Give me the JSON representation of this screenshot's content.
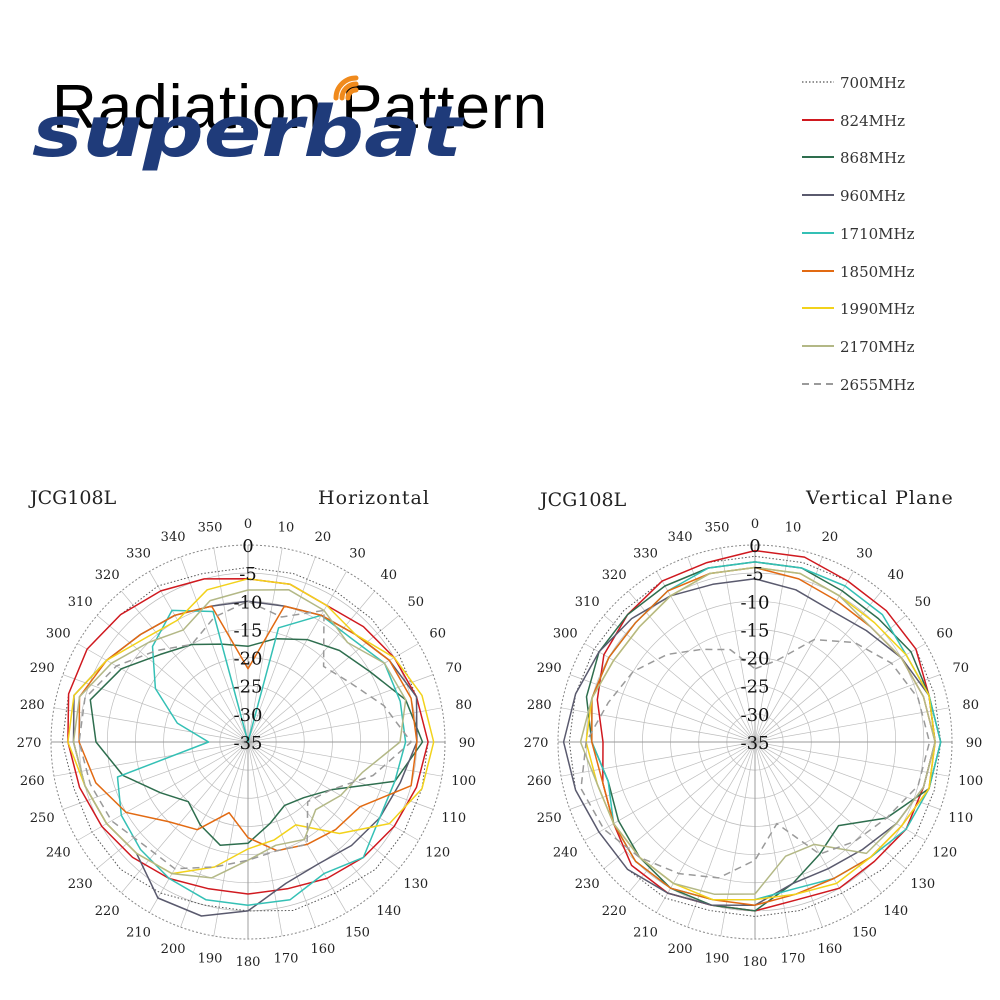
{
  "page": {
    "title": "Radiation Pattern",
    "logo_text": "superbat"
  },
  "colors": {
    "logo_blue": "#1f3b7a",
    "logo_orange": "#f08a1c",
    "grid": "#bdbdbd"
  },
  "legend": [
    {
      "label": "700MHz",
      "color": "#555555",
      "dash": "dotted"
    },
    {
      "label": "824MHz",
      "color": "#d0191f",
      "dash": "solid"
    },
    {
      "label": "868MHz",
      "color": "#2e6e4e",
      "dash": "solid"
    },
    {
      "label": "960MHz",
      "color": "#5a5a6e",
      "dash": "solid"
    },
    {
      "label": "1710MHz",
      "color": "#34c0b5",
      "dash": "solid"
    },
    {
      "label": "1850MHz",
      "color": "#e26a12",
      "dash": "solid"
    },
    {
      "label": "1990MHz",
      "color": "#f2d21b",
      "dash": "solid"
    },
    {
      "label": "2170MHz",
      "color": "#b3b886",
      "dash": "solid"
    },
    {
      "label": "2655MHz",
      "color": "#9a9a9a",
      "dash": "dashed"
    }
  ],
  "chart_data": [
    {
      "type": "polar-line",
      "model": "JCG108L",
      "title": "Horizontal",
      "r_ticks": [
        "0",
        "-5",
        "-10",
        "-15",
        "-20",
        "-25",
        "-30",
        "-35"
      ],
      "r_range": [
        -35,
        0
      ],
      "angle_ticks": [
        "0",
        "10",
        "20",
        "30",
        "40",
        "50",
        "60",
        "70",
        "80",
        "90",
        "100",
        "110",
        "120",
        "130",
        "140",
        "150",
        "160",
        "170",
        "180",
        "190",
        "200",
        "210",
        "220",
        "230",
        "240",
        "250",
        "260",
        "270",
        "280",
        "290",
        "300",
        "310",
        "320",
        "330",
        "340",
        "350"
      ],
      "angles": [
        0,
        15,
        30,
        45,
        60,
        75,
        90,
        105,
        120,
        135,
        150,
        165,
        180,
        195,
        210,
        225,
        240,
        255,
        270,
        285,
        300,
        315,
        330,
        345
      ],
      "series": [
        {
          "name": "700MHz",
          "values": [
            -4,
            -4,
            -4,
            -4,
            -4,
            -4,
            -3,
            -3,
            -3,
            -3,
            -4,
            -4,
            -5,
            -5,
            -4,
            -3,
            -3,
            -3,
            -2,
            -2,
            -2,
            -3,
            -3,
            -4
          ]
        },
        {
          "name": "824MHz",
          "values": [
            -6,
            -6,
            -7,
            -6,
            -5,
            -4,
            -3,
            -4,
            -5,
            -6,
            -7,
            -8,
            -8,
            -8,
            -7,
            -6,
            -5,
            -4,
            -3,
            -2,
            -2,
            -3,
            -4,
            -5
          ]
        },
        {
          "name": "868MHz",
          "values": [
            -18,
            -16,
            -14,
            -12,
            -10,
            -6,
            -4,
            -8,
            -18,
            -21,
            -22,
            -20,
            -17,
            -16,
            -18,
            -20,
            -17,
            -12,
            -8,
            -6,
            -9,
            -13,
            -15,
            -17
          ]
        },
        {
          "name": "960MHz",
          "values": [
            -10,
            -10,
            -9,
            -8,
            -6,
            -4,
            -5,
            -7,
            -8,
            -9,
            -10,
            -9,
            -5,
            -3,
            -3,
            -7,
            -6,
            -5,
            -4,
            -3,
            -6,
            -8,
            -9,
            -10
          ]
        },
        {
          "name": "1710MHz",
          "values": [
            -35,
            -14,
            -9,
            -9,
            -7,
            -7,
            -7,
            -8,
            -8,
            -6,
            -8,
            -6,
            -6,
            -6,
            -7,
            -8,
            -9,
            -11,
            -28,
            -22,
            -16,
            -11,
            -8,
            -11
          ]
        },
        {
          "name": "1850MHz",
          "values": [
            -22,
            -10,
            -9,
            -8,
            -6,
            -5,
            -5,
            -5,
            -12,
            -13,
            -14,
            -15,
            -18,
            -22,
            -17,
            -15,
            -10,
            -7,
            -5,
            -4,
            -6,
            -8,
            -9,
            -10
          ]
        },
        {
          "name": "1990MHz",
          "values": [
            -6,
            -6,
            -7,
            -8,
            -5,
            -3,
            -2,
            -3,
            -6,
            -12,
            -18,
            -17,
            -16,
            -12,
            -8,
            -7,
            -6,
            -5,
            -3,
            -3,
            -6,
            -9,
            -10,
            -7
          ]
        },
        {
          "name": "2170MHz",
          "values": [
            -8,
            -7,
            -8,
            -10,
            -7,
            -6,
            -8,
            -14,
            -16,
            -18,
            -15,
            -16,
            -14,
            -10,
            -8,
            -7,
            -6,
            -5,
            -4,
            -4,
            -7,
            -10,
            -12,
            -9
          ]
        },
        {
          "name": "2655MHz",
          "values": [
            -10,
            -12,
            -8,
            -16,
            -14,
            -10,
            -6,
            -12,
            -18,
            -20,
            -14,
            -15,
            -14,
            -12,
            -9,
            -9,
            -7,
            -6,
            -5,
            -5,
            -8,
            -12,
            -15,
            -12
          ]
        }
      ]
    },
    {
      "type": "polar-line",
      "model": "JCG108L",
      "title": "Vertical Plane",
      "r_ticks": [
        "0",
        "-5",
        "-10",
        "-15",
        "-20",
        "-25",
        "-30",
        "-35"
      ],
      "r_range": [
        -35,
        0
      ],
      "angle_ticks": [
        "0",
        "10",
        "20",
        "30",
        "40",
        "50",
        "60",
        "70",
        "80",
        "90",
        "100",
        "110",
        "120",
        "130",
        "140",
        "150",
        "160",
        "170",
        "180",
        "190",
        "200",
        "210",
        "220",
        "230",
        "240",
        "250",
        "260",
        "270",
        "280",
        "290",
        "300",
        "310",
        "320",
        "330",
        "340",
        "350"
      ],
      "angles": [
        0,
        15,
        30,
        45,
        60,
        75,
        90,
        105,
        120,
        135,
        150,
        165,
        180,
        195,
        210,
        225,
        240,
        255,
        270,
        285,
        300,
        315,
        330,
        345
      ],
      "series": [
        {
          "name": "700MHz",
          "values": [
            -2,
            -2,
            -2,
            -2,
            -2,
            -2,
            -2,
            -2,
            -2,
            -3,
            -4,
            -4,
            -4,
            -4,
            -3,
            -3,
            -3,
            -2,
            -2,
            -2,
            -2,
            -2,
            -2,
            -2
          ]
        },
        {
          "name": "824MHz",
          "values": [
            -1,
            -1,
            -2,
            -2,
            -2,
            -3,
            -3,
            -4,
            -4,
            -5,
            -5,
            -6,
            -5,
            -5,
            -4,
            -4,
            -6,
            -7,
            -8,
            -6,
            -4,
            -3,
            -2,
            -2
          ]
        },
        {
          "name": "868MHz",
          "values": [
            -3,
            -3,
            -4,
            -4,
            -3,
            -3,
            -2,
            -3,
            -8,
            -14,
            -12,
            -9,
            -5,
            -5,
            -5,
            -6,
            -7,
            -8,
            -6,
            -4,
            -3,
            -3,
            -3,
            -3
          ]
        },
        {
          "name": "960MHz",
          "values": [
            -6,
            -7,
            -8,
            -7,
            -5,
            -3,
            -3,
            -4,
            -6,
            -8,
            -9,
            -9,
            -6,
            -5,
            -4,
            -3,
            -3,
            -2,
            -1,
            -2,
            -3,
            -4,
            -5,
            -6
          ]
        },
        {
          "name": "1710MHz",
          "values": [
            -3,
            -3,
            -3,
            -3,
            -4,
            -3,
            -2,
            -3,
            -4,
            -6,
            -7,
            -8,
            -7,
            -6,
            -5,
            -5,
            -6,
            -8,
            -6,
            -5,
            -5,
            -5,
            -4,
            -3
          ]
        },
        {
          "name": "1850MHz",
          "values": [
            -4,
            -5,
            -6,
            -6,
            -5,
            -4,
            -3,
            -3,
            -5,
            -6,
            -7,
            -7,
            -6,
            -6,
            -5,
            -5,
            -6,
            -7,
            -6,
            -5,
            -5,
            -5,
            -4,
            -4
          ]
        },
        {
          "name": "1990MHz",
          "values": [
            -4,
            -4,
            -5,
            -5,
            -4,
            -3,
            -3,
            -3,
            -5,
            -6,
            -6,
            -7,
            -7,
            -6,
            -6,
            -6,
            -6,
            -6,
            -5,
            -5,
            -6,
            -6,
            -5,
            -4
          ]
        },
        {
          "name": "2170MHz",
          "values": [
            -4,
            -4,
            -5,
            -6,
            -5,
            -4,
            -3,
            -4,
            -6,
            -7,
            -14,
            -14,
            -8,
            -7,
            -6,
            -6,
            -6,
            -6,
            -4,
            -5,
            -6,
            -6,
            -5,
            -4
          ]
        },
        {
          "name": "2655MHz",
          "values": [
            -22,
            -20,
            -14,
            -10,
            -7,
            -5,
            -4,
            -5,
            -8,
            -10,
            -12,
            -20,
            -14,
            -10,
            -8,
            -6,
            -4,
            -3,
            -5,
            -8,
            -10,
            -13,
            -16,
            -18
          ]
        }
      ]
    }
  ]
}
